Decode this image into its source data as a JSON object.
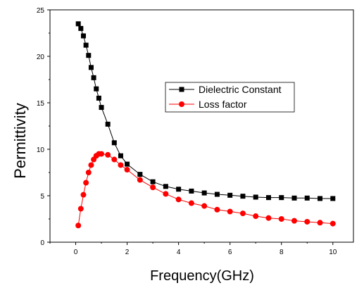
{
  "chart_data": {
    "type": "line",
    "title": "",
    "xlabel": "Frequency(GHz)",
    "ylabel": "Permittivity",
    "xlim": [
      -1,
      10.8
    ],
    "ylim": [
      0,
      25
    ],
    "xticks": [
      0,
      2,
      4,
      6,
      8,
      10
    ],
    "yticks": [
      0,
      5,
      10,
      15,
      20,
      25
    ],
    "xtick_labels": [
      "0",
      "2",
      "4",
      "6",
      "8",
      "10"
    ],
    "ytick_labels": [
      "0",
      "5",
      "10",
      "15",
      "20",
      "25"
    ],
    "grid": false,
    "legend_position": "center-right",
    "series": [
      {
        "name": "Dielectric Constant",
        "color": "#000000",
        "marker": "square",
        "x": [
          0.1,
          0.2,
          0.3,
          0.4,
          0.5,
          0.6,
          0.7,
          0.8,
          0.9,
          1.0,
          1.25,
          1.5,
          1.75,
          2.0,
          2.5,
          3.0,
          3.5,
          4.0,
          4.5,
          5.0,
          5.5,
          6.0,
          6.5,
          7.0,
          7.5,
          8.0,
          8.5,
          9.0,
          9.5,
          10.0
        ],
        "y": [
          23.5,
          23.0,
          22.2,
          21.2,
          20.1,
          18.8,
          17.7,
          16.5,
          15.5,
          14.5,
          12.7,
          10.7,
          9.3,
          8.4,
          7.3,
          6.5,
          6.0,
          5.7,
          5.5,
          5.3,
          5.15,
          5.05,
          4.95,
          4.85,
          4.8,
          4.8,
          4.75,
          4.75,
          4.7,
          4.7
        ]
      },
      {
        "name": "Loss factor",
        "color": "#ff0000",
        "marker": "circle",
        "x": [
          0.1,
          0.2,
          0.3,
          0.4,
          0.5,
          0.6,
          0.7,
          0.8,
          0.9,
          1.0,
          1.25,
          1.5,
          1.75,
          2.0,
          2.5,
          3.0,
          3.5,
          4.0,
          4.5,
          5.0,
          5.5,
          6.0,
          6.5,
          7.0,
          7.5,
          8.0,
          8.5,
          9.0,
          9.5,
          10.0
        ],
        "y": [
          1.8,
          3.6,
          5.1,
          6.4,
          7.5,
          8.3,
          8.9,
          9.3,
          9.5,
          9.5,
          9.4,
          8.9,
          8.3,
          7.8,
          6.7,
          5.9,
          5.2,
          4.6,
          4.2,
          3.9,
          3.5,
          3.3,
          3.1,
          2.8,
          2.6,
          2.5,
          2.3,
          2.2,
          2.1,
          2.0
        ]
      }
    ]
  }
}
